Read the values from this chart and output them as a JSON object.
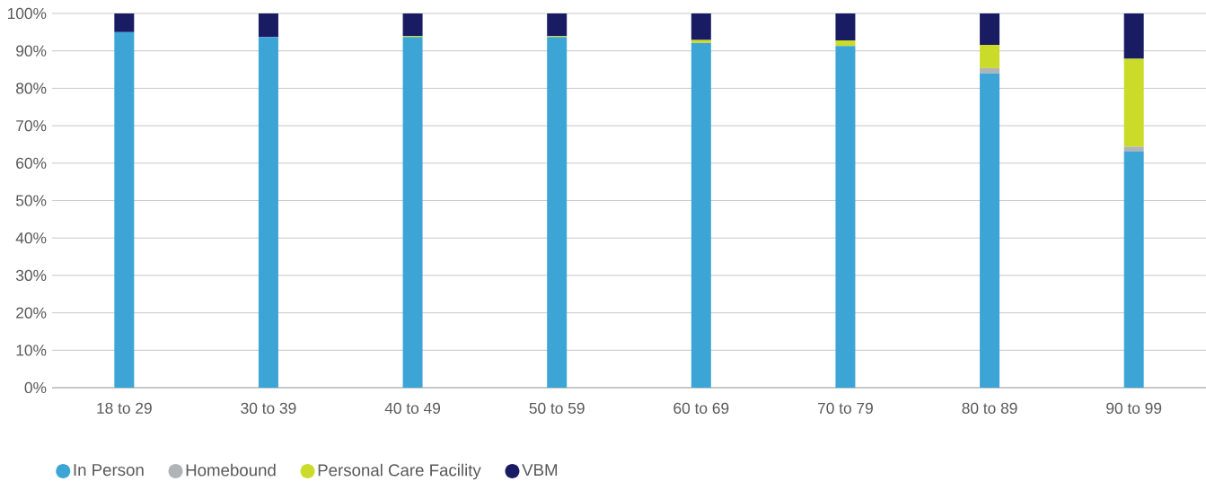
{
  "chart_data": {
    "type": "bar",
    "stacked": true,
    "grid": "y",
    "legend": "bottom left",
    "categories": [
      "18 to 29",
      "30 to 39",
      "40 to 49",
      "50 to 59",
      "60 to 69",
      "70 to 79",
      "80 to 89",
      "90 to 99"
    ],
    "series": [
      {
        "name": "In Person",
        "color": "#3da5d6",
        "values": [
          95.0,
          93.7,
          93.7,
          93.7,
          92.1,
          91.3,
          84.0,
          63.1
        ]
      },
      {
        "name": "Homebound",
        "color": "#b1b3b6",
        "values": [
          0,
          0,
          0,
          0,
          0,
          0,
          1.4,
          1.3
        ]
      },
      {
        "name": "Personal Care Facility",
        "color": "#cbdb2a",
        "values": [
          0,
          0,
          0.3,
          0.3,
          0.8,
          1.5,
          6.2,
          23.5
        ]
      },
      {
        "name": "VBM",
        "color": "#1a1c63",
        "values": [
          5.0,
          6.3,
          6.0,
          6.0,
          7.1,
          7.2,
          8.4,
          12.1
        ]
      }
    ],
    "ylim": [
      0,
      100
    ],
    "yticks": [
      {
        "value": 0,
        "label": "0%"
      },
      {
        "value": 10,
        "label": "10%"
      },
      {
        "value": 20,
        "label": "20%"
      },
      {
        "value": 30,
        "label": "30%"
      },
      {
        "value": 40,
        "label": "40%"
      },
      {
        "value": 50,
        "label": "50%"
      },
      {
        "value": 60,
        "label": "60%"
      },
      {
        "value": 70,
        "label": "70%"
      },
      {
        "value": 80,
        "label": "80%"
      },
      {
        "value": 90,
        "label": "90%"
      },
      {
        "value": 100,
        "label": "100%"
      }
    ]
  }
}
